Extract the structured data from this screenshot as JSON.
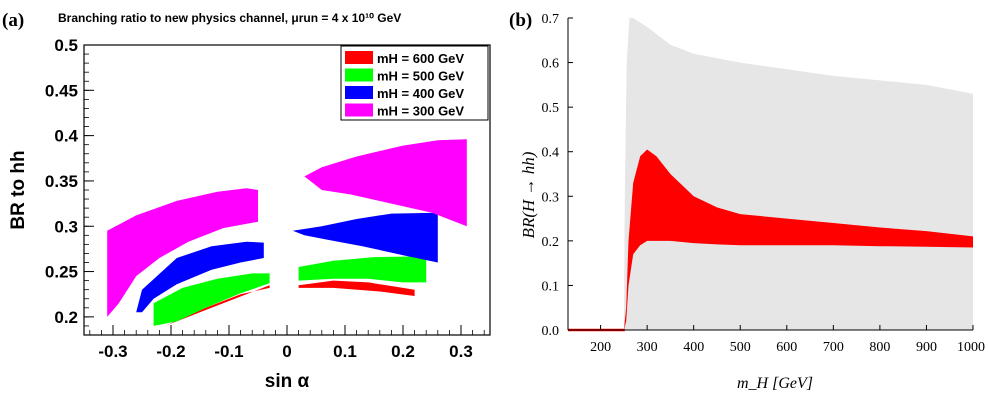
{
  "panel_a": {
    "label": "(a)",
    "title": "Branching ratio to new physics channel, μrun = 4 x 10¹⁰ GeV",
    "xlabel": "sin α",
    "ylabel": "BR to hh"
  },
  "panel_b": {
    "label": "(b)",
    "ylabel": "BR(H → hh)",
    "xlabel": "m_H [GeV]"
  },
  "chart_data": [
    {
      "type": "area",
      "title": "Branching ratio to new physics channel, μrun = 4 x 10¹⁰ GeV",
      "xlabel": "sin α",
      "ylabel": "BR to hh",
      "xlim": [
        -0.35,
        0.35
      ],
      "ylim": [
        0.18,
        0.5
      ],
      "xticks": [
        "-0.3",
        "-0.2",
        "-0.1",
        "0",
        "0.1",
        "0.2",
        "0.3"
      ],
      "yticks": [
        "0.2",
        "0.25",
        "0.3",
        "0.35",
        "0.4",
        "0.45",
        "0.5"
      ],
      "legend_position": "top-right",
      "series": [
        {
          "name": "mH = 600 GeV",
          "color": "#ff0000",
          "regions": [
            [
              [
                -0.21,
                0.19
              ],
              [
                -0.15,
                0.205
              ],
              [
                -0.09,
                0.22
              ],
              [
                -0.05,
                0.23
              ],
              [
                -0.03,
                0.235
              ],
              [
                -0.03,
                0.232
              ],
              [
                -0.08,
                0.225
              ],
              [
                -0.14,
                0.21
              ],
              [
                -0.2,
                0.193
              ]
            ],
            [
              [
                0.02,
                0.235
              ],
              [
                0.08,
                0.24
              ],
              [
                0.14,
                0.238
              ],
              [
                0.2,
                0.232
              ],
              [
                0.22,
                0.23
              ],
              [
                0.22,
                0.223
              ],
              [
                0.16,
                0.228
              ],
              [
                0.08,
                0.232
              ],
              [
                0.02,
                0.232
              ]
            ]
          ]
        },
        {
          "name": "mH = 500 GeV",
          "color": "#00ff00",
          "regions": [
            [
              [
                -0.23,
                0.19
              ],
              [
                -0.23,
                0.215
              ],
              [
                -0.18,
                0.232
              ],
              [
                -0.12,
                0.242
              ],
              [
                -0.06,
                0.248
              ],
              [
                -0.03,
                0.248
              ],
              [
                -0.03,
                0.237
              ],
              [
                -0.08,
                0.226
              ],
              [
                -0.14,
                0.21
              ],
              [
                -0.19,
                0.195
              ]
            ],
            [
              [
                0.02,
                0.24
              ],
              [
                0.02,
                0.255
              ],
              [
                0.08,
                0.262
              ],
              [
                0.15,
                0.266
              ],
              [
                0.24,
                0.267
              ],
              [
                0.24,
                0.238
              ],
              [
                0.2,
                0.238
              ],
              [
                0.14,
                0.242
              ],
              [
                0.08,
                0.242
              ]
            ]
          ]
        },
        {
          "name": "mH = 400 GeV",
          "color": "#0000ff",
          "regions": [
            [
              [
                -0.26,
                0.205
              ],
              [
                -0.25,
                0.23
              ],
              [
                -0.19,
                0.265
              ],
              [
                -0.13,
                0.278
              ],
              [
                -0.07,
                0.283
              ],
              [
                -0.04,
                0.282
              ],
              [
                -0.04,
                0.265
              ],
              [
                -0.08,
                0.26
              ],
              [
                -0.13,
                0.252
              ],
              [
                -0.19,
                0.236
              ],
              [
                -0.23,
                0.22
              ],
              [
                -0.25,
                0.205
              ]
            ],
            [
              [
                0.01,
                0.295
              ],
              [
                0.06,
                0.3
              ],
              [
                0.12,
                0.308
              ],
              [
                0.18,
                0.314
              ],
              [
                0.26,
                0.315
              ],
              [
                0.26,
                0.26
              ],
              [
                0.2,
                0.268
              ],
              [
                0.13,
                0.278
              ],
              [
                0.07,
                0.285
              ],
              [
                0.03,
                0.29
              ]
            ]
          ]
        },
        {
          "name": "mH = 300 GeV",
          "color": "#ff00ff",
          "regions": [
            [
              [
                -0.31,
                0.2
              ],
              [
                -0.31,
                0.295
              ],
              [
                -0.26,
                0.312
              ],
              [
                -0.19,
                0.328
              ],
              [
                -0.12,
                0.338
              ],
              [
                -0.07,
                0.342
              ],
              [
                -0.05,
                0.34
              ],
              [
                -0.05,
                0.305
              ],
              [
                -0.11,
                0.298
              ],
              [
                -0.17,
                0.283
              ],
              [
                -0.22,
                0.265
              ],
              [
                -0.26,
                0.245
              ],
              [
                -0.29,
                0.215
              ]
            ],
            [
              [
                0.03,
                0.355
              ],
              [
                0.06,
                0.365
              ],
              [
                0.12,
                0.377
              ],
              [
                0.2,
                0.389
              ],
              [
                0.26,
                0.395
              ],
              [
                0.31,
                0.396
              ],
              [
                0.31,
                0.3
              ],
              [
                0.25,
                0.315
              ],
              [
                0.18,
                0.325
              ],
              [
                0.11,
                0.335
              ],
              [
                0.06,
                0.34
              ]
            ]
          ]
        }
      ]
    },
    {
      "type": "area",
      "xlabel": "m_H [GeV]",
      "ylabel": "BR(H → hh)",
      "xlim": [
        130,
        1000
      ],
      "ylim": [
        0.0,
        0.7
      ],
      "xticks": [
        200,
        300,
        400,
        500,
        600,
        700,
        800,
        900,
        1000
      ],
      "yticks": [
        0.0,
        0.1,
        0.2,
        0.3,
        0.4,
        0.5,
        0.6,
        0.7
      ],
      "grid": false,
      "series": [
        {
          "color": "#e6e6e6",
          "x": [
            130,
            250,
            252,
            256,
            262,
            270,
            300,
            350,
            400,
            500,
            600,
            700,
            800,
            900,
            1000
          ],
          "upper": [
            0.0,
            0.0,
            0.3,
            0.6,
            0.7,
            0.7,
            0.68,
            0.64,
            0.62,
            0.6,
            0.585,
            0.57,
            0.56,
            0.55,
            0.53
          ],
          "lower": [
            0.0,
            0.0,
            0.0,
            0.0,
            0.0,
            0.0,
            0.0,
            0.0,
            0.0,
            0.0,
            0.0,
            0.0,
            0.0,
            0.0,
            0.0
          ]
        },
        {
          "color": "#ff0000",
          "x": [
            130,
            250,
            255,
            260,
            270,
            285,
            300,
            320,
            350,
            400,
            450,
            500,
            600,
            700,
            800,
            900,
            1000
          ],
          "upper": [
            0.0,
            0.0,
            0.05,
            0.2,
            0.33,
            0.39,
            0.405,
            0.39,
            0.35,
            0.3,
            0.275,
            0.26,
            0.25,
            0.24,
            0.23,
            0.222,
            0.21
          ],
          "lower": [
            0.0,
            0.0,
            0.02,
            0.1,
            0.17,
            0.19,
            0.2,
            0.2,
            0.2,
            0.195,
            0.192,
            0.19,
            0.19,
            0.19,
            0.188,
            0.187,
            0.185
          ]
        }
      ]
    }
  ]
}
